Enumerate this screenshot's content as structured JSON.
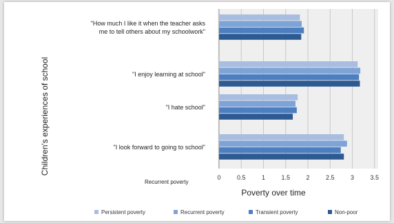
{
  "chart_data": {
    "type": "bar",
    "orientation": "horizontal",
    "categories": [
      [
        "\"How much I like it when the teacher asks",
        "me to tell others about my schoolwork\""
      ],
      [
        "\"I enjoy learning at school\""
      ],
      [
        "\"I hate school\""
      ],
      [
        "\"I look forward to going to school\""
      ]
    ],
    "series": [
      {
        "name": "Persistent poverty",
        "color": "#a8bde0",
        "values": [
          1.82,
          3.12,
          1.77,
          2.81
        ]
      },
      {
        "name": "Recurrent poverty",
        "color": "#7ea3d6",
        "values": [
          1.86,
          3.18,
          1.72,
          2.88
        ]
      },
      {
        "name": "Transient poverty",
        "color": "#4d7fc0",
        "values": [
          1.91,
          3.15,
          1.75,
          2.74
        ]
      },
      {
        "name": "Non-poor",
        "color": "#2e5a92",
        "values": [
          1.85,
          3.17,
          1.66,
          2.81
        ]
      }
    ],
    "xlabel": "Poverty over time",
    "ylabel": "Children's experiences of school",
    "xlim": [
      0,
      3.5
    ],
    "xticks": [
      "0",
      "0.5",
      "1",
      "1.5",
      "2",
      "2.5",
      "3",
      "3.5"
    ],
    "grid": true,
    "legend": "bottom",
    "annotation": "Recurrent poverty"
  }
}
